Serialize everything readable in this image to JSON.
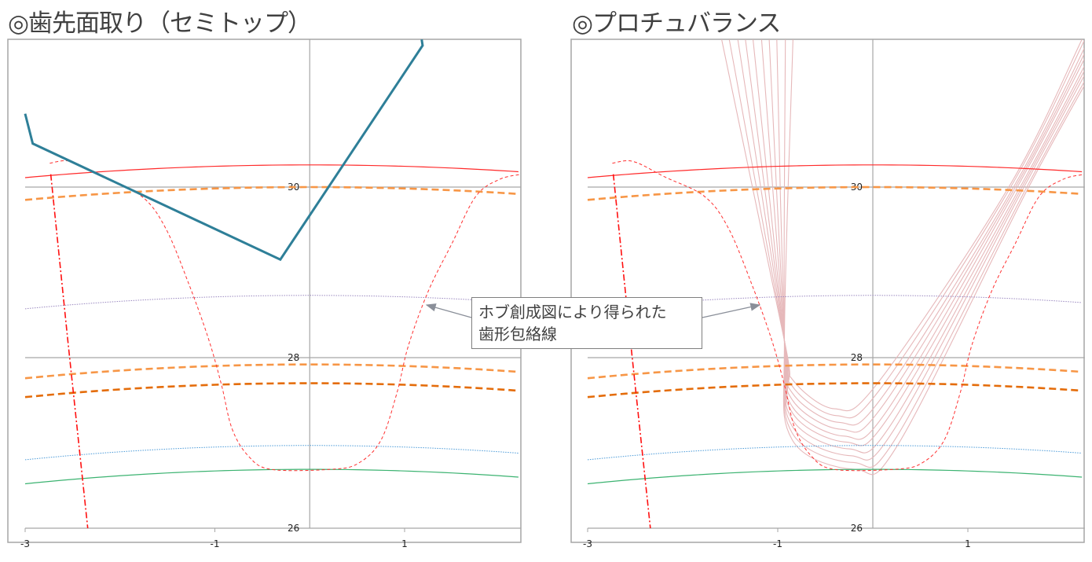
{
  "titles": [
    "◎歯先面取り（セミトップ）",
    "◎プロチュバランス"
  ],
  "callout": {
    "lines": [
      "ホブ創成図により得られた",
      "歯形包絡線"
    ]
  },
  "colors": {
    "tip_circle": "#ff2a2a",
    "pitch_circle": "#f79646",
    "mid_circle": "#9a88c0",
    "circle_a": "#f79646",
    "circle_b": "#e46c0a",
    "circle_c": "#4a9ad8",
    "root_circle": "#3cb371",
    "tooth_profile": "#ff3030",
    "center_line": "#ff1010",
    "semitop_hob": "#2e7f98",
    "envelope": "#e6b8ba",
    "axis": "#a6a6a6",
    "frame": "#a6a6a6",
    "callout_arrow": "#8a8f99"
  },
  "chart_data": [
    {
      "type": "line",
      "title": "◎歯先面取り（セミトップ）",
      "xlim": [
        -3,
        2.23
      ],
      "ylim": [
        26,
        31.73
      ],
      "x_ticks": [
        -3,
        -1,
        1
      ],
      "y_ticks": [
        30,
        28,
        26
      ],
      "grid": "horizontal at y ticks",
      "circles_radius": [
        {
          "r": 30.26,
          "style": "solid",
          "color_key": "tip_circle"
        },
        {
          "r": 30.0,
          "style": "dashed-thick",
          "color_key": "pitch_circle"
        },
        {
          "r": 28.73,
          "style": "dotted",
          "color_key": "mid_circle"
        },
        {
          "r": 27.92,
          "style": "dashed-thick",
          "color_key": "circle_a"
        },
        {
          "r": 27.7,
          "style": "dashed-thick",
          "color_key": "circle_b"
        },
        {
          "r": 26.97,
          "style": "dotted",
          "color_key": "circle_c"
        },
        {
          "r": 26.69,
          "style": "solid",
          "color_key": "root_circle"
        }
      ],
      "tooth_profile": [
        [
          -2.74,
          30.28
        ],
        [
          -2.52,
          30.3
        ],
        [
          -2.19,
          30.12
        ],
        [
          -1.77,
          29.89
        ],
        [
          -1.52,
          29.52
        ],
        [
          -1.28,
          28.88
        ],
        [
          -1.07,
          28.23
        ],
        [
          -0.93,
          27.68
        ],
        [
          -0.82,
          27.17
        ],
        [
          -0.65,
          26.85
        ],
        [
          -0.41,
          26.69
        ],
        [
          0.22,
          26.69
        ],
        [
          0.51,
          26.76
        ],
        [
          0.75,
          27.03
        ],
        [
          0.92,
          27.59
        ],
        [
          1.04,
          28.14
        ],
        [
          1.25,
          28.78
        ],
        [
          1.5,
          29.34
        ],
        [
          1.75,
          29.89
        ],
        [
          2.0,
          30.09
        ],
        [
          2.23,
          30.15
        ]
      ],
      "center_line": [
        [
          -2.73,
          30.15
        ],
        [
          -2.55,
          28.2
        ],
        [
          -2.34,
          26.0
        ]
      ],
      "semitop_hob": [
        [
          -3.0,
          30.86
        ],
        [
          -2.92,
          30.51
        ],
        [
          -0.31,
          29.15
        ],
        [
          1.19,
          31.66
        ],
        [
          1.18,
          31.73
        ]
      ]
    },
    {
      "type": "line",
      "title": "◎プロチュバランス",
      "xlim": [
        -3,
        2.23
      ],
      "ylim": [
        26,
        31.73
      ],
      "x_ticks": [
        -3,
        -1,
        1
      ],
      "y_ticks": [
        30,
        28,
        26
      ],
      "grid": "horizontal at y ticks",
      "envelope_curves": [
        [
          [
            -1.59,
            31.73
          ],
          [
            -0.93,
            28.2
          ],
          [
            -0.85,
            27.75
          ],
          [
            -0.4,
            27.4
          ],
          [
            0.05,
            27.7
          ],
          [
            1.43,
            30
          ],
          [
            2.2,
            31.73
          ]
        ],
        [
          [
            -1.51,
            31.73
          ],
          [
            -0.93,
            28.2
          ],
          [
            -0.85,
            27.67
          ],
          [
            -0.38,
            27.32
          ],
          [
            0.07,
            27.62
          ],
          [
            1.45,
            30
          ],
          [
            2.23,
            31.73
          ]
        ],
        [
          [
            -1.42,
            31.73
          ],
          [
            -0.93,
            28.2
          ],
          [
            -0.85,
            27.59
          ],
          [
            -0.35,
            27.24
          ],
          [
            0.1,
            27.54
          ],
          [
            1.48,
            30
          ],
          [
            2.27,
            31.73
          ]
        ],
        [
          [
            -1.34,
            31.73
          ],
          [
            -0.93,
            28.2
          ],
          [
            -0.85,
            27.51
          ],
          [
            -0.33,
            27.16
          ],
          [
            0.12,
            27.46
          ],
          [
            1.5,
            30
          ],
          [
            2.3,
            31.73
          ]
        ],
        [
          [
            -1.26,
            31.73
          ],
          [
            -0.93,
            28.2
          ],
          [
            -0.85,
            27.43
          ],
          [
            -0.3,
            27.08
          ],
          [
            0.15,
            27.38
          ],
          [
            1.52,
            30
          ],
          [
            2.33,
            31.73
          ]
        ],
        [
          [
            -1.17,
            31.73
          ],
          [
            -0.93,
            28.2
          ],
          [
            -0.85,
            27.36
          ],
          [
            -0.28,
            27.01
          ],
          [
            0.17,
            27.31
          ],
          [
            1.55,
            30
          ],
          [
            2.37,
            31.73
          ]
        ],
        [
          [
            -1.09,
            31.73
          ],
          [
            -0.93,
            28.2
          ],
          [
            -0.85,
            27.28
          ],
          [
            -0.25,
            26.93
          ],
          [
            0.2,
            27.23
          ],
          [
            1.57,
            30
          ],
          [
            2.4,
            31.73
          ]
        ],
        [
          [
            -1.01,
            31.73
          ],
          [
            -0.93,
            28.2
          ],
          [
            -0.85,
            27.2
          ],
          [
            -0.23,
            26.85
          ],
          [
            0.22,
            27.15
          ],
          [
            1.59,
            30
          ],
          [
            2.43,
            31.73
          ]
        ],
        [
          [
            -0.92,
            31.73
          ],
          [
            -0.93,
            28.2
          ],
          [
            -0.85,
            27.12
          ],
          [
            -0.2,
            26.77
          ],
          [
            0.25,
            27.07
          ],
          [
            1.62,
            30
          ],
          [
            2.47,
            31.73
          ]
        ],
        [
          [
            -0.84,
            31.73
          ],
          [
            -0.93,
            28.2
          ],
          [
            -0.85,
            27.04
          ],
          [
            -0.18,
            26.69
          ],
          [
            0.27,
            26.99
          ],
          [
            1.64,
            30
          ],
          [
            2.5,
            31.73
          ]
        ]
      ]
    }
  ]
}
